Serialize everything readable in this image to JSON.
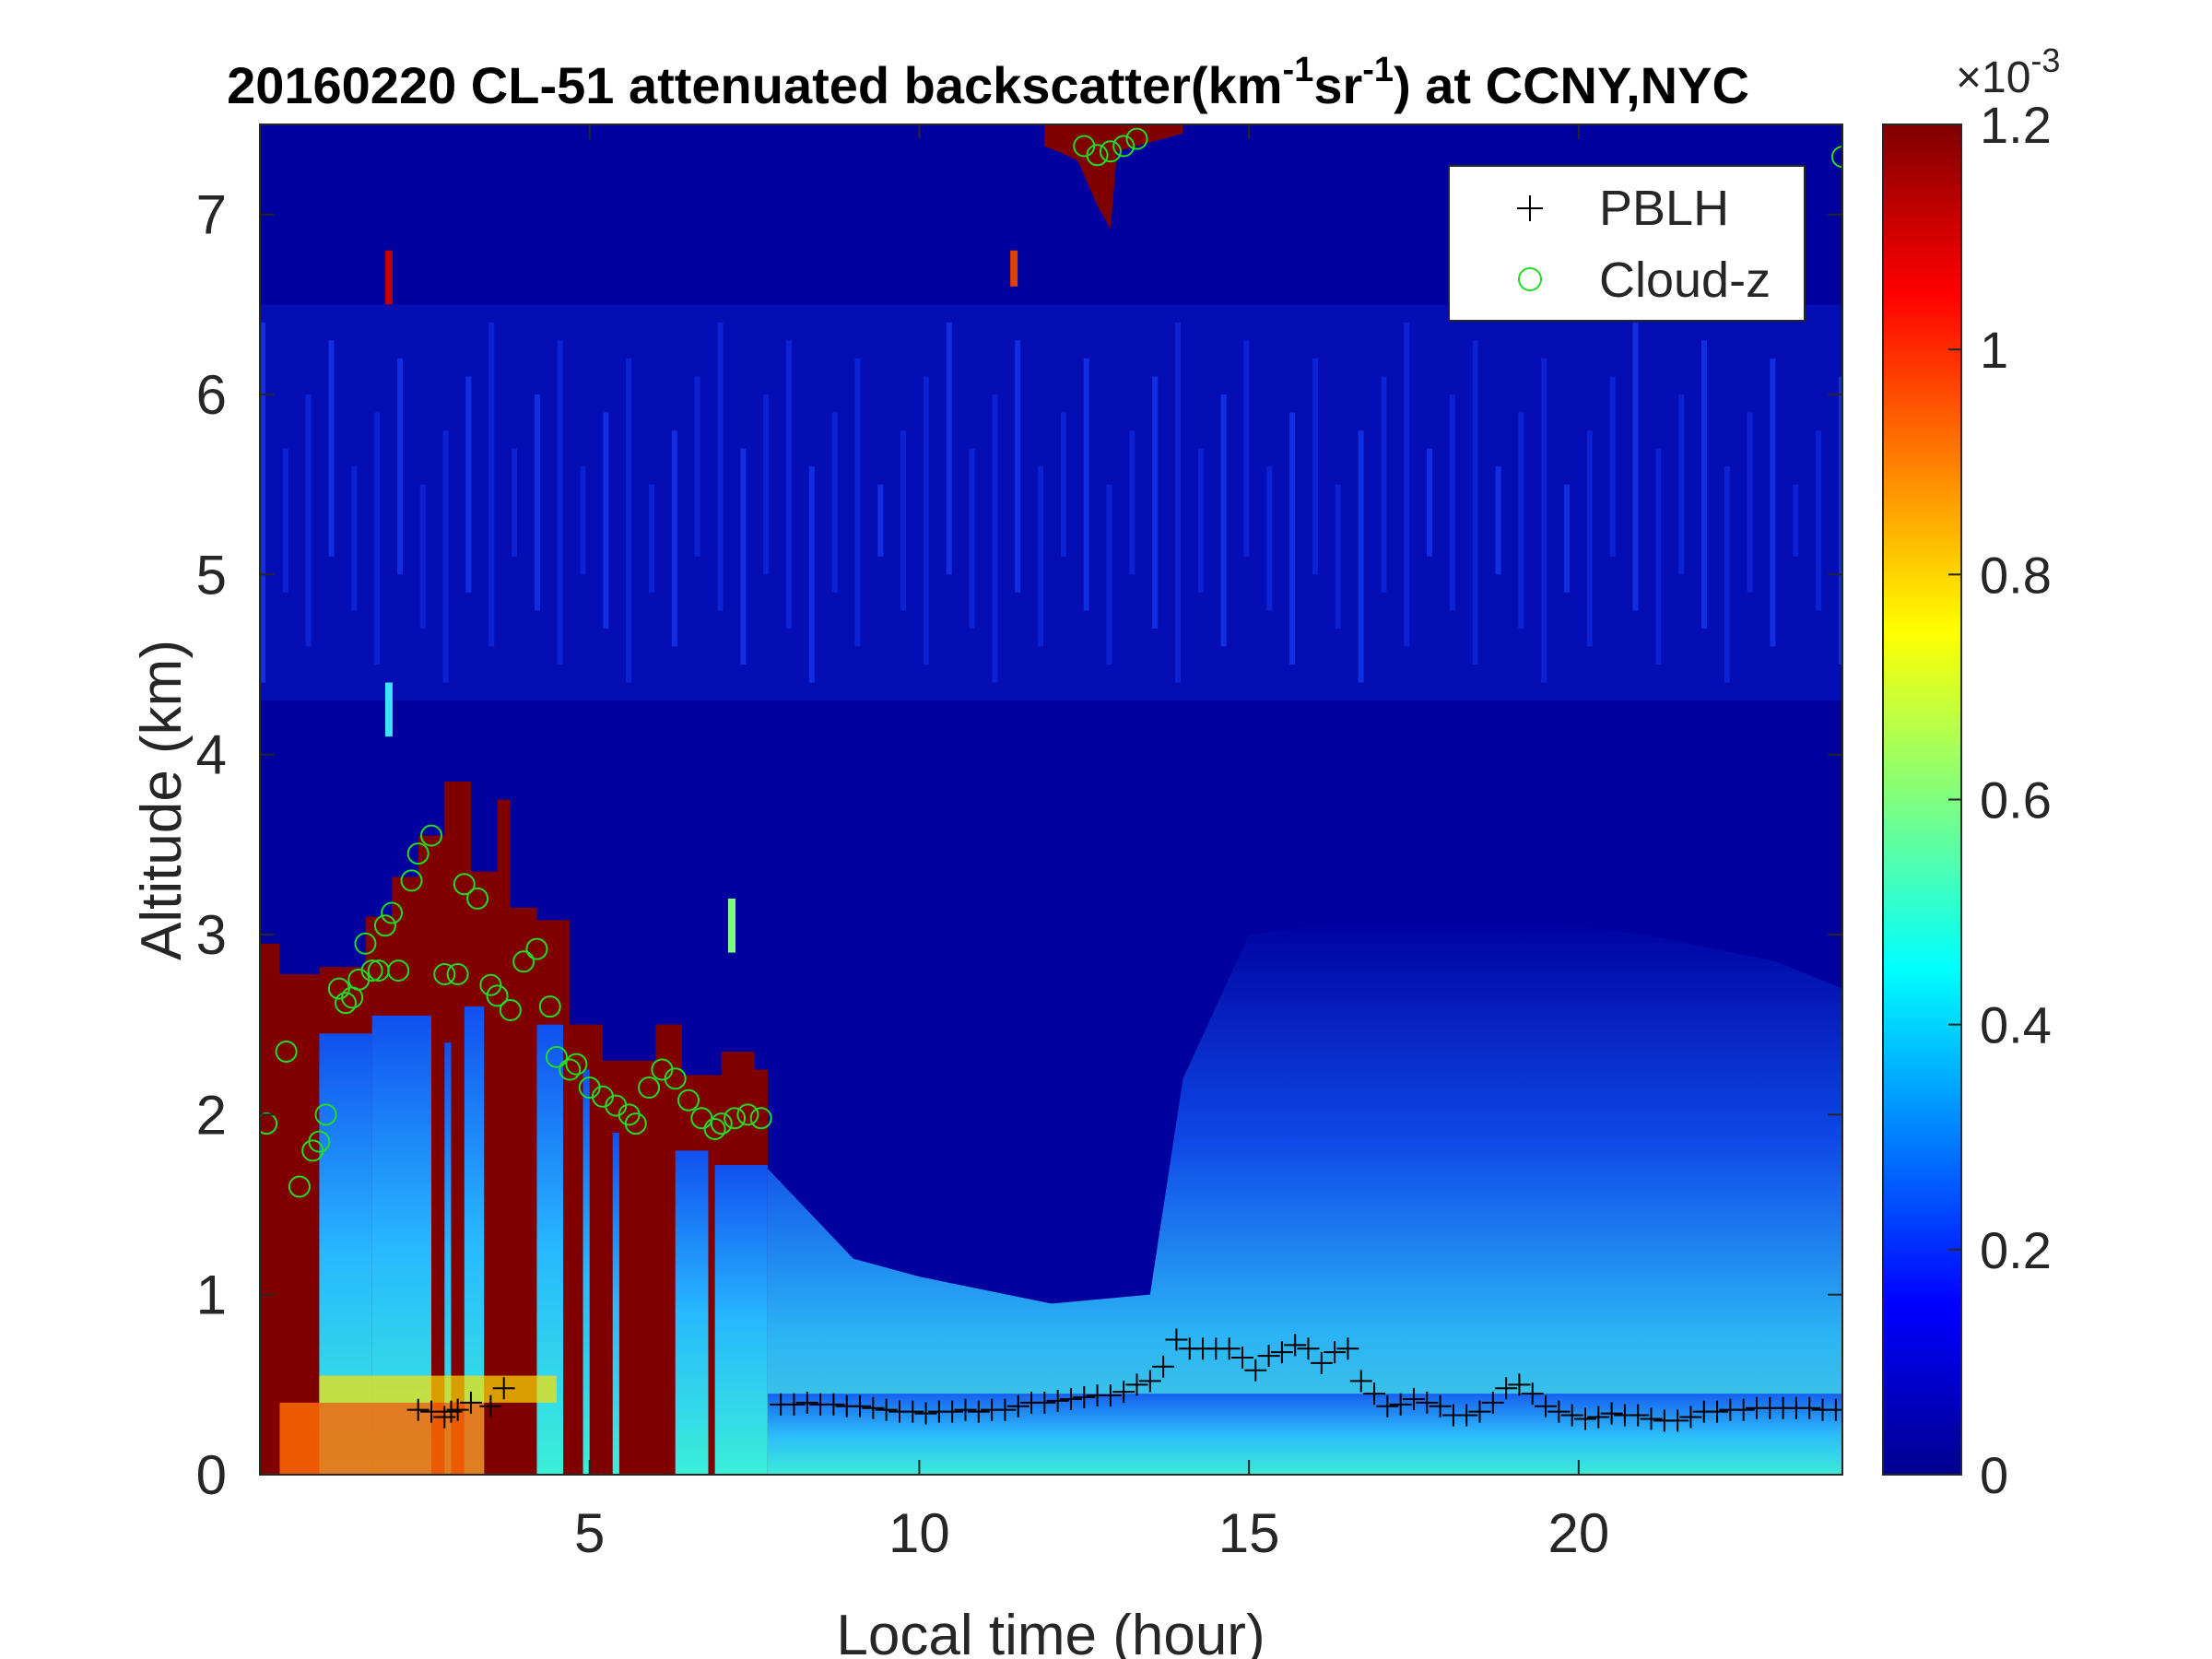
{
  "chart_data": {
    "type": "heatmap",
    "title": {
      "prefix": "20160220  CL-51 attenuated backscatter(km",
      "sup1": "-1",
      "mid": "sr",
      "sup2": "-1",
      "suffix": ") at CCNY,NYC"
    },
    "xlabel": "Local time (hour)",
    "ylabel": "Altitude (km)",
    "xlim": [
      0,
      24
    ],
    "ylim": [
      0,
      7.5
    ],
    "xticks": [
      5,
      10,
      15,
      20
    ],
    "yticks": [
      0,
      1,
      2,
      3,
      4,
      5,
      6,
      7
    ],
    "colorbar": {
      "range": [
        0,
        0.0012
      ],
      "ticks": [
        0,
        0.2,
        0.4,
        0.6,
        0.8,
        1,
        1.2
      ],
      "exponent_label": "10",
      "exponent_sup": "-3",
      "exponent_prefix": "×",
      "colormap": "jet"
    },
    "legend": {
      "position": "top-right",
      "entries": [
        {
          "label": "PBLH",
          "marker": "+",
          "color": "#000000"
        },
        {
          "label": "Cloud-z",
          "marker": "o",
          "color": "#22dd22"
        }
      ]
    },
    "series": [
      {
        "name": "PBLH",
        "marker": "+",
        "color": "#000000",
        "x": [
          2.4,
          2.6,
          2.8,
          2.9,
          3.0,
          3.2,
          3.5,
          3.7,
          7.9,
          8.1,
          8.3,
          8.5,
          8.7,
          8.9,
          9.1,
          9.3,
          9.5,
          9.7,
          9.9,
          10.1,
          10.3,
          10.5,
          10.7,
          10.9,
          11.1,
          11.3,
          11.5,
          11.7,
          11.9,
          12.1,
          12.3,
          12.5,
          12.7,
          12.9,
          13.1,
          13.3,
          13.5,
          13.7,
          13.9,
          14.1,
          14.3,
          14.5,
          14.7,
          14.9,
          15.1,
          15.3,
          15.5,
          15.7,
          15.9,
          16.1,
          16.3,
          16.5,
          16.7,
          16.9,
          17.1,
          17.3,
          17.5,
          17.7,
          17.9,
          18.1,
          18.3,
          18.5,
          18.7,
          18.9,
          19.1,
          19.3,
          19.5,
          19.7,
          19.9,
          20.1,
          20.3,
          20.5,
          20.7,
          20.9,
          21.1,
          21.3,
          21.5,
          21.7,
          21.9,
          22.1,
          22.3,
          22.5,
          22.7,
          22.9,
          23.1,
          23.3,
          23.5,
          23.7,
          23.9
        ],
        "y": [
          0.36,
          0.35,
          0.32,
          0.35,
          0.36,
          0.4,
          0.38,
          0.48,
          0.39,
          0.39,
          0.4,
          0.39,
          0.39,
          0.38,
          0.38,
          0.37,
          0.36,
          0.35,
          0.35,
          0.34,
          0.35,
          0.35,
          0.36,
          0.35,
          0.36,
          0.36,
          0.38,
          0.4,
          0.4,
          0.41,
          0.42,
          0.43,
          0.44,
          0.44,
          0.46,
          0.5,
          0.52,
          0.6,
          0.75,
          0.7,
          0.7,
          0.7,
          0.7,
          0.65,
          0.58,
          0.66,
          0.68,
          0.72,
          0.7,
          0.62,
          0.68,
          0.7,
          0.52,
          0.45,
          0.38,
          0.39,
          0.42,
          0.4,
          0.38,
          0.33,
          0.33,
          0.35,
          0.4,
          0.48,
          0.5,
          0.45,
          0.38,
          0.35,
          0.33,
          0.31,
          0.32,
          0.34,
          0.33,
          0.33,
          0.31,
          0.3,
          0.3,
          0.32,
          0.35,
          0.35,
          0.36,
          0.36,
          0.37,
          0.37,
          0.37,
          0.37,
          0.37,
          0.36,
          0.36
        ]
      },
      {
        "name": "Cloud-z",
        "marker": "o",
        "color": "#22dd22",
        "x": [
          0.1,
          0.4,
          0.6,
          0.8,
          0.9,
          1.0,
          1.2,
          1.3,
          1.4,
          1.5,
          1.6,
          1.7,
          1.8,
          1.9,
          2.0,
          2.1,
          2.3,
          2.4,
          2.6,
          2.8,
          3.0,
          3.1,
          3.3,
          3.5,
          3.6,
          3.8,
          4.0,
          4.2,
          4.4,
          4.5,
          4.7,
          4.8,
          5.0,
          5.2,
          5.4,
          5.6,
          5.7,
          5.9,
          6.1,
          6.3,
          6.5,
          6.7,
          6.9,
          7.0,
          7.2,
          7.4,
          7.6,
          12.5,
          12.7,
          12.9,
          13.1,
          13.3,
          24.0
        ],
        "y": [
          1.95,
          2.35,
          1.6,
          1.8,
          1.85,
          2.0,
          2.7,
          2.62,
          2.65,
          2.75,
          2.95,
          2.8,
          2.8,
          3.05,
          3.12,
          2.8,
          3.3,
          3.45,
          3.55,
          2.78,
          2.78,
          3.28,
          3.2,
          2.72,
          2.66,
          2.58,
          2.85,
          2.92,
          2.6,
          2.32,
          2.25,
          2.28,
          2.15,
          2.1,
          2.05,
          2.0,
          1.95,
          2.15,
          2.25,
          2.2,
          2.08,
          1.98,
          1.92,
          1.95,
          1.98,
          2.0,
          1.98,
          7.38,
          7.33,
          7.35,
          7.38,
          7.42,
          7.32
        ]
      }
    ],
    "field": {
      "description": "attenuated backscatter field (×10^-3 km^-1 sr^-1), saturated dark red above 1.2",
      "cloud_top_km": [
        {
          "t0": 0.0,
          "t1": 0.3,
          "top": 2.95
        },
        {
          "t0": 0.3,
          "t1": 0.9,
          "top": 2.78
        },
        {
          "t0": 0.9,
          "t1": 1.6,
          "top": 2.82
        },
        {
          "t0": 1.6,
          "t1": 2.0,
          "top": 3.1
        },
        {
          "t0": 2.0,
          "t1": 2.4,
          "top": 3.32
        },
        {
          "t0": 2.4,
          "t1": 2.8,
          "top": 3.55
        },
        {
          "t0": 2.8,
          "t1": 3.2,
          "top": 3.85
        },
        {
          "t0": 3.2,
          "t1": 3.6,
          "top": 3.35
        },
        {
          "t0": 3.6,
          "t1": 3.8,
          "top": 3.75
        },
        {
          "t0": 3.8,
          "t1": 4.2,
          "top": 3.15
        },
        {
          "t0": 4.2,
          "t1": 4.7,
          "top": 3.08
        },
        {
          "t0": 4.7,
          "t1": 5.2,
          "top": 2.5
        },
        {
          "t0": 5.2,
          "t1": 6.0,
          "top": 2.3
        },
        {
          "t0": 6.0,
          "t1": 6.4,
          "top": 2.5
        },
        {
          "t0": 6.4,
          "t1": 7.0,
          "top": 2.22
        },
        {
          "t0": 7.0,
          "t1": 7.5,
          "top": 2.35
        },
        {
          "t0": 7.5,
          "t1": 7.7,
          "top": 2.25
        }
      ],
      "high_cloud": {
        "t0": 11.9,
        "t1": 14.0,
        "base": 6.92,
        "top": 7.5
      }
    }
  }
}
